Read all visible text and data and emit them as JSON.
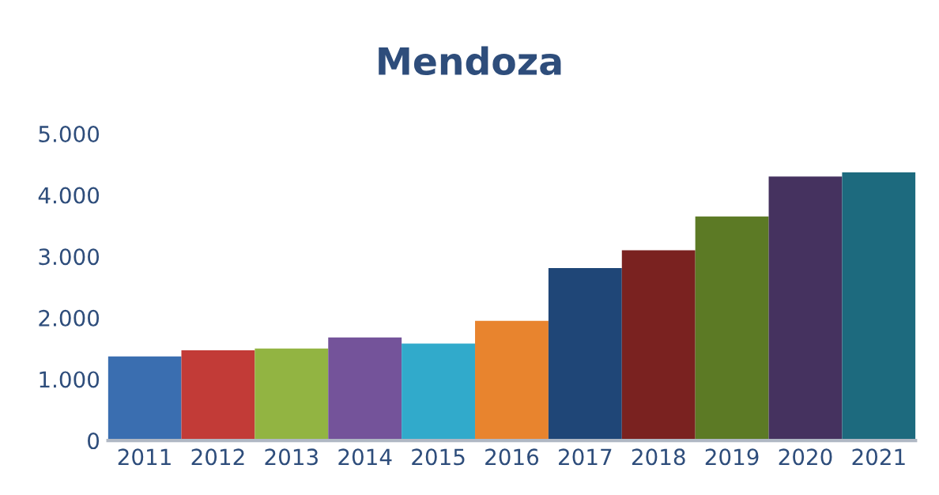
{
  "chart_data": {
    "type": "bar",
    "title": "Mendoza",
    "categories": [
      "2011",
      "2012",
      "2013",
      "2014",
      "2015",
      "2016",
      "2017",
      "2018",
      "2019",
      "2020",
      "2021"
    ],
    "values": [
      1370,
      1470,
      1500,
      1680,
      1580,
      1950,
      2810,
      3100,
      3650,
      4300,
      4370
    ],
    "colors": [
      "#3a6eb0",
      "#c23b37",
      "#92b442",
      "#74539a",
      "#31aacb",
      "#e8842e",
      "#1f4677",
      "#7a2220",
      "#5c7a25",
      "#45325f",
      "#1d6a7e"
    ],
    "ylim": [
      0,
      5000
    ],
    "yticks": [
      0,
      {
        "value": 1000,
        "label": "1.000"
      },
      {
        "value": 2000,
        "label": "2.000"
      },
      {
        "value": 3000,
        "label": "3.000"
      },
      {
        "value": 4000,
        "label": "4.000"
      },
      {
        "value": 5000,
        "label": "5.000"
      }
    ],
    "grid": false,
    "legend": false
  }
}
